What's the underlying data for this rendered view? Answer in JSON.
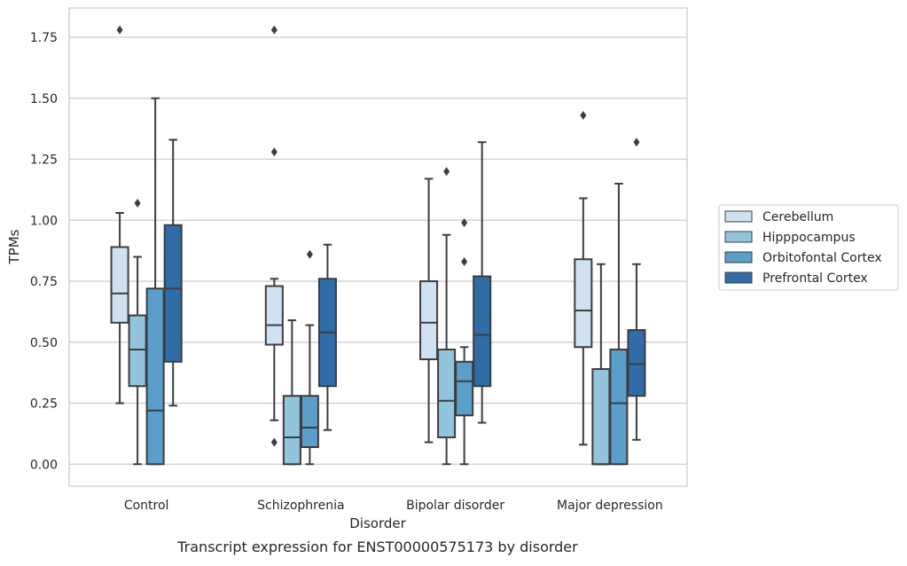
{
  "chart_data": {
    "type": "box",
    "xlabel": "Disorder",
    "ylabel": "TPMs",
    "caption": "Transcript expression for ENST00000575173 by disorder",
    "ylim": [
      -0.09,
      1.87
    ],
    "yticks": [
      "0.00",
      "0.25",
      "0.50",
      "0.75",
      "1.00",
      "1.25",
      "1.50",
      "1.75"
    ],
    "grid": "horizontal",
    "legend_position": "right",
    "categories": [
      "Control",
      "Schizophrenia",
      "Bipolar disorder",
      "Major depression"
    ],
    "series": [
      {
        "name": "Cerebellum",
        "color": "#d0e2f2",
        "boxes": [
          {
            "min": 0.25,
            "q1": 0.58,
            "median": 0.7,
            "q3": 0.89,
            "max": 1.03,
            "outliers": [
              1.78
            ]
          },
          {
            "min": 0.18,
            "q1": 0.49,
            "median": 0.57,
            "q3": 0.73,
            "max": 0.76,
            "outliers": [
              1.78,
              1.28,
              0.09
            ]
          },
          {
            "min": 0.09,
            "q1": 0.43,
            "median": 0.58,
            "q3": 0.75,
            "max": 1.17,
            "outliers": []
          },
          {
            "min": 0.08,
            "q1": 0.48,
            "median": 0.63,
            "q3": 0.84,
            "max": 1.09,
            "outliers": [
              1.43
            ]
          }
        ]
      },
      {
        "name": "Hipppocampus",
        "color": "#93c4de",
        "boxes": [
          {
            "min": 0.0,
            "q1": 0.32,
            "median": 0.47,
            "q3": 0.61,
            "max": 0.85,
            "outliers": [
              1.07
            ]
          },
          {
            "min": 0.0,
            "q1": 0.0,
            "median": 0.11,
            "q3": 0.28,
            "max": 0.59,
            "outliers": []
          },
          {
            "min": 0.0,
            "q1": 0.11,
            "median": 0.26,
            "q3": 0.47,
            "max": 0.94,
            "outliers": [
              1.2
            ]
          },
          {
            "min": 0.0,
            "q1": 0.0,
            "median": 0.0,
            "q3": 0.39,
            "max": 0.82,
            "outliers": []
          }
        ]
      },
      {
        "name": "Orbitofontal Cortex",
        "color": "#5a9ec9",
        "boxes": [
          {
            "min": 0.0,
            "q1": 0.0,
            "median": 0.22,
            "q3": 0.72,
            "max": 1.5,
            "outliers": []
          },
          {
            "min": 0.0,
            "q1": 0.07,
            "median": 0.15,
            "q3": 0.28,
            "max": 0.57,
            "outliers": [
              0.86
            ]
          },
          {
            "min": 0.0,
            "q1": 0.2,
            "median": 0.34,
            "q3": 0.42,
            "max": 0.48,
            "outliers": [
              0.99,
              0.83
            ]
          },
          {
            "min": 0.0,
            "q1": 0.0,
            "median": 0.25,
            "q3": 0.47,
            "max": 1.15,
            "outliers": []
          }
        ]
      },
      {
        "name": "Prefrontal Cortex",
        "color": "#2f6ca8",
        "boxes": [
          {
            "min": 0.24,
            "q1": 0.42,
            "median": 0.72,
            "q3": 0.98,
            "max": 1.33,
            "outliers": []
          },
          {
            "min": 0.14,
            "q1": 0.32,
            "median": 0.54,
            "q3": 0.76,
            "max": 0.9,
            "outliers": []
          },
          {
            "min": 0.17,
            "q1": 0.32,
            "median": 0.53,
            "q3": 0.77,
            "max": 1.32,
            "outliers": []
          },
          {
            "min": 0.1,
            "q1": 0.28,
            "median": 0.41,
            "q3": 0.55,
            "max": 0.82,
            "outliers": [
              1.32
            ]
          }
        ]
      }
    ]
  }
}
